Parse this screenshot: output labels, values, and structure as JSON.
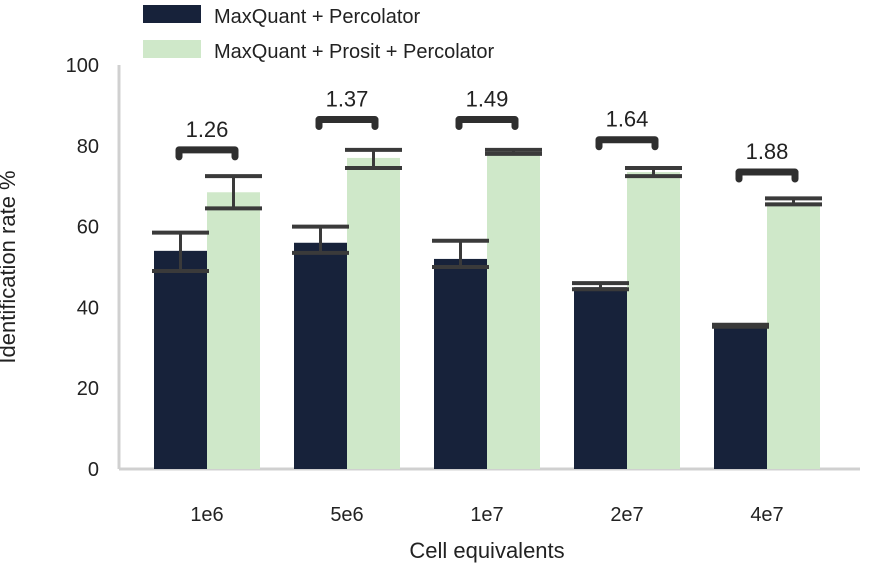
{
  "chart_data": {
    "type": "bar",
    "title": "",
    "xlabel": "Cell equivalents",
    "ylabel": "Identification rate %",
    "categories": [
      "1e6",
      "5e6",
      "1e7",
      "2e7",
      "4e7"
    ],
    "ylim": [
      0,
      100
    ],
    "yticks": [
      0,
      20,
      40,
      60,
      80,
      100
    ],
    "grid": false,
    "legend_position": "top-left",
    "series": [
      {
        "name": "MaxQuant + Percolator",
        "color": "#17223a",
        "values": [
          54,
          56,
          52,
          45,
          35.5
        ],
        "error_low": [
          49,
          53.5,
          50,
          44.5,
          35.2
        ],
        "error_high": [
          58.5,
          60,
          56.5,
          46,
          35.7
        ]
      },
      {
        "name": "MaxQuant + Prosit + Percolator",
        "color": "#cfe8c9",
        "values": [
          68.5,
          77,
          78.5,
          73.5,
          66
        ],
        "error_low": [
          64.5,
          74.5,
          78,
          72.5,
          65.5
        ],
        "error_high": [
          72.5,
          79,
          79,
          74.5,
          67
        ]
      }
    ],
    "annotations": [
      "1.26",
      "1.37",
      "1.49",
      "1.64",
      "1.88"
    ],
    "annotation_levels": [
      79,
      86.5,
      86.5,
      81.5,
      73.5
    ],
    "colors": {
      "error_bar": "#3a3a3a",
      "bracket": "#2f2f2f",
      "axis": "#d0d0d0"
    }
  }
}
